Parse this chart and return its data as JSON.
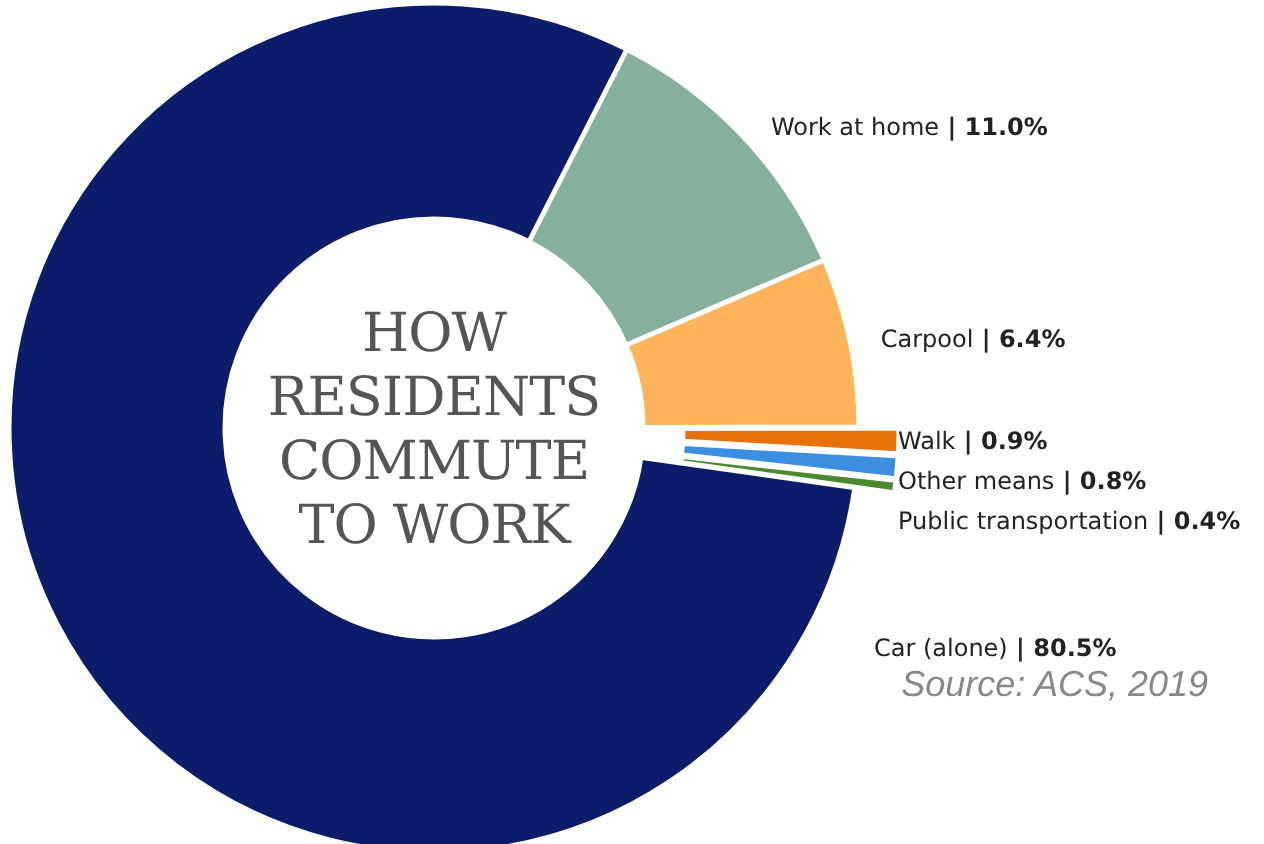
{
  "chart_data": {
    "type": "donut",
    "title": "HOW RESIDENTS COMMUTE TO WORK",
    "categories": [
      "Work at home",
      "Carpool",
      "Walk",
      "Other means",
      "Public transportation",
      "Car (alone)"
    ],
    "values": [
      11.0,
      6.4,
      0.9,
      0.8,
      0.4,
      80.5
    ],
    "value_labels": [
      "| 11.0%",
      "| 6.4%",
      "| 0.9%",
      "| 0.8%",
      "| 0.4%",
      "| 80.5%"
    ],
    "colors": [
      "#86b09b",
      "#ffb45c",
      "#e8710a",
      "#3c8fe0",
      "#4a8a2e",
      "#0c1b6a"
    ],
    "annotations": [
      "Source: ACS, 2019"
    ]
  }
}
